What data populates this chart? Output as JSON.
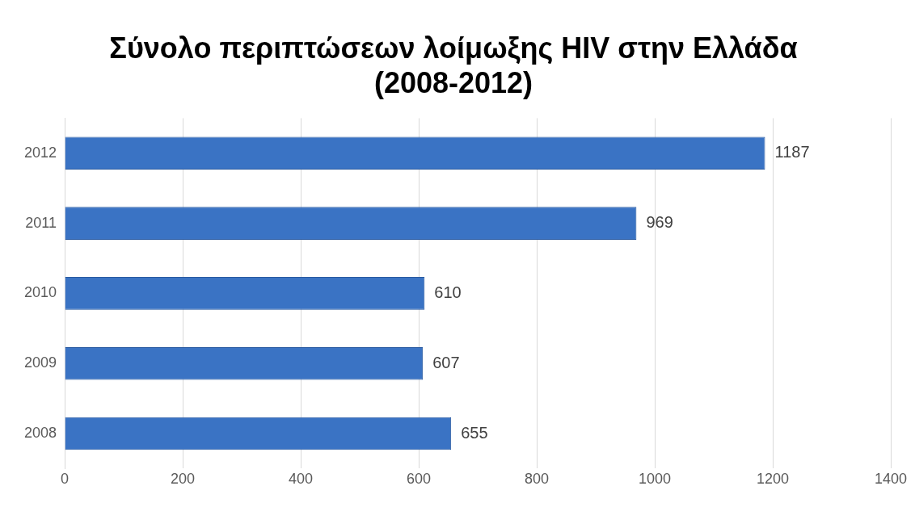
{
  "chart_data": {
    "type": "bar",
    "orientation": "horizontal",
    "title": "Σύνολο περιπτώσεων λοίμωξης HIV στην Ελλάδα\n(2008-2012)",
    "categories": [
      "2012",
      "2011",
      "2010",
      "2009",
      "2008"
    ],
    "values": [
      1187,
      969,
      610,
      607,
      655
    ],
    "color": "#3a73c4",
    "xlim": [
      0,
      1400
    ],
    "xticks": [
      0,
      200,
      400,
      600,
      800,
      1000,
      1200,
      1400
    ],
    "grid": "x",
    "data_labels": true
  }
}
